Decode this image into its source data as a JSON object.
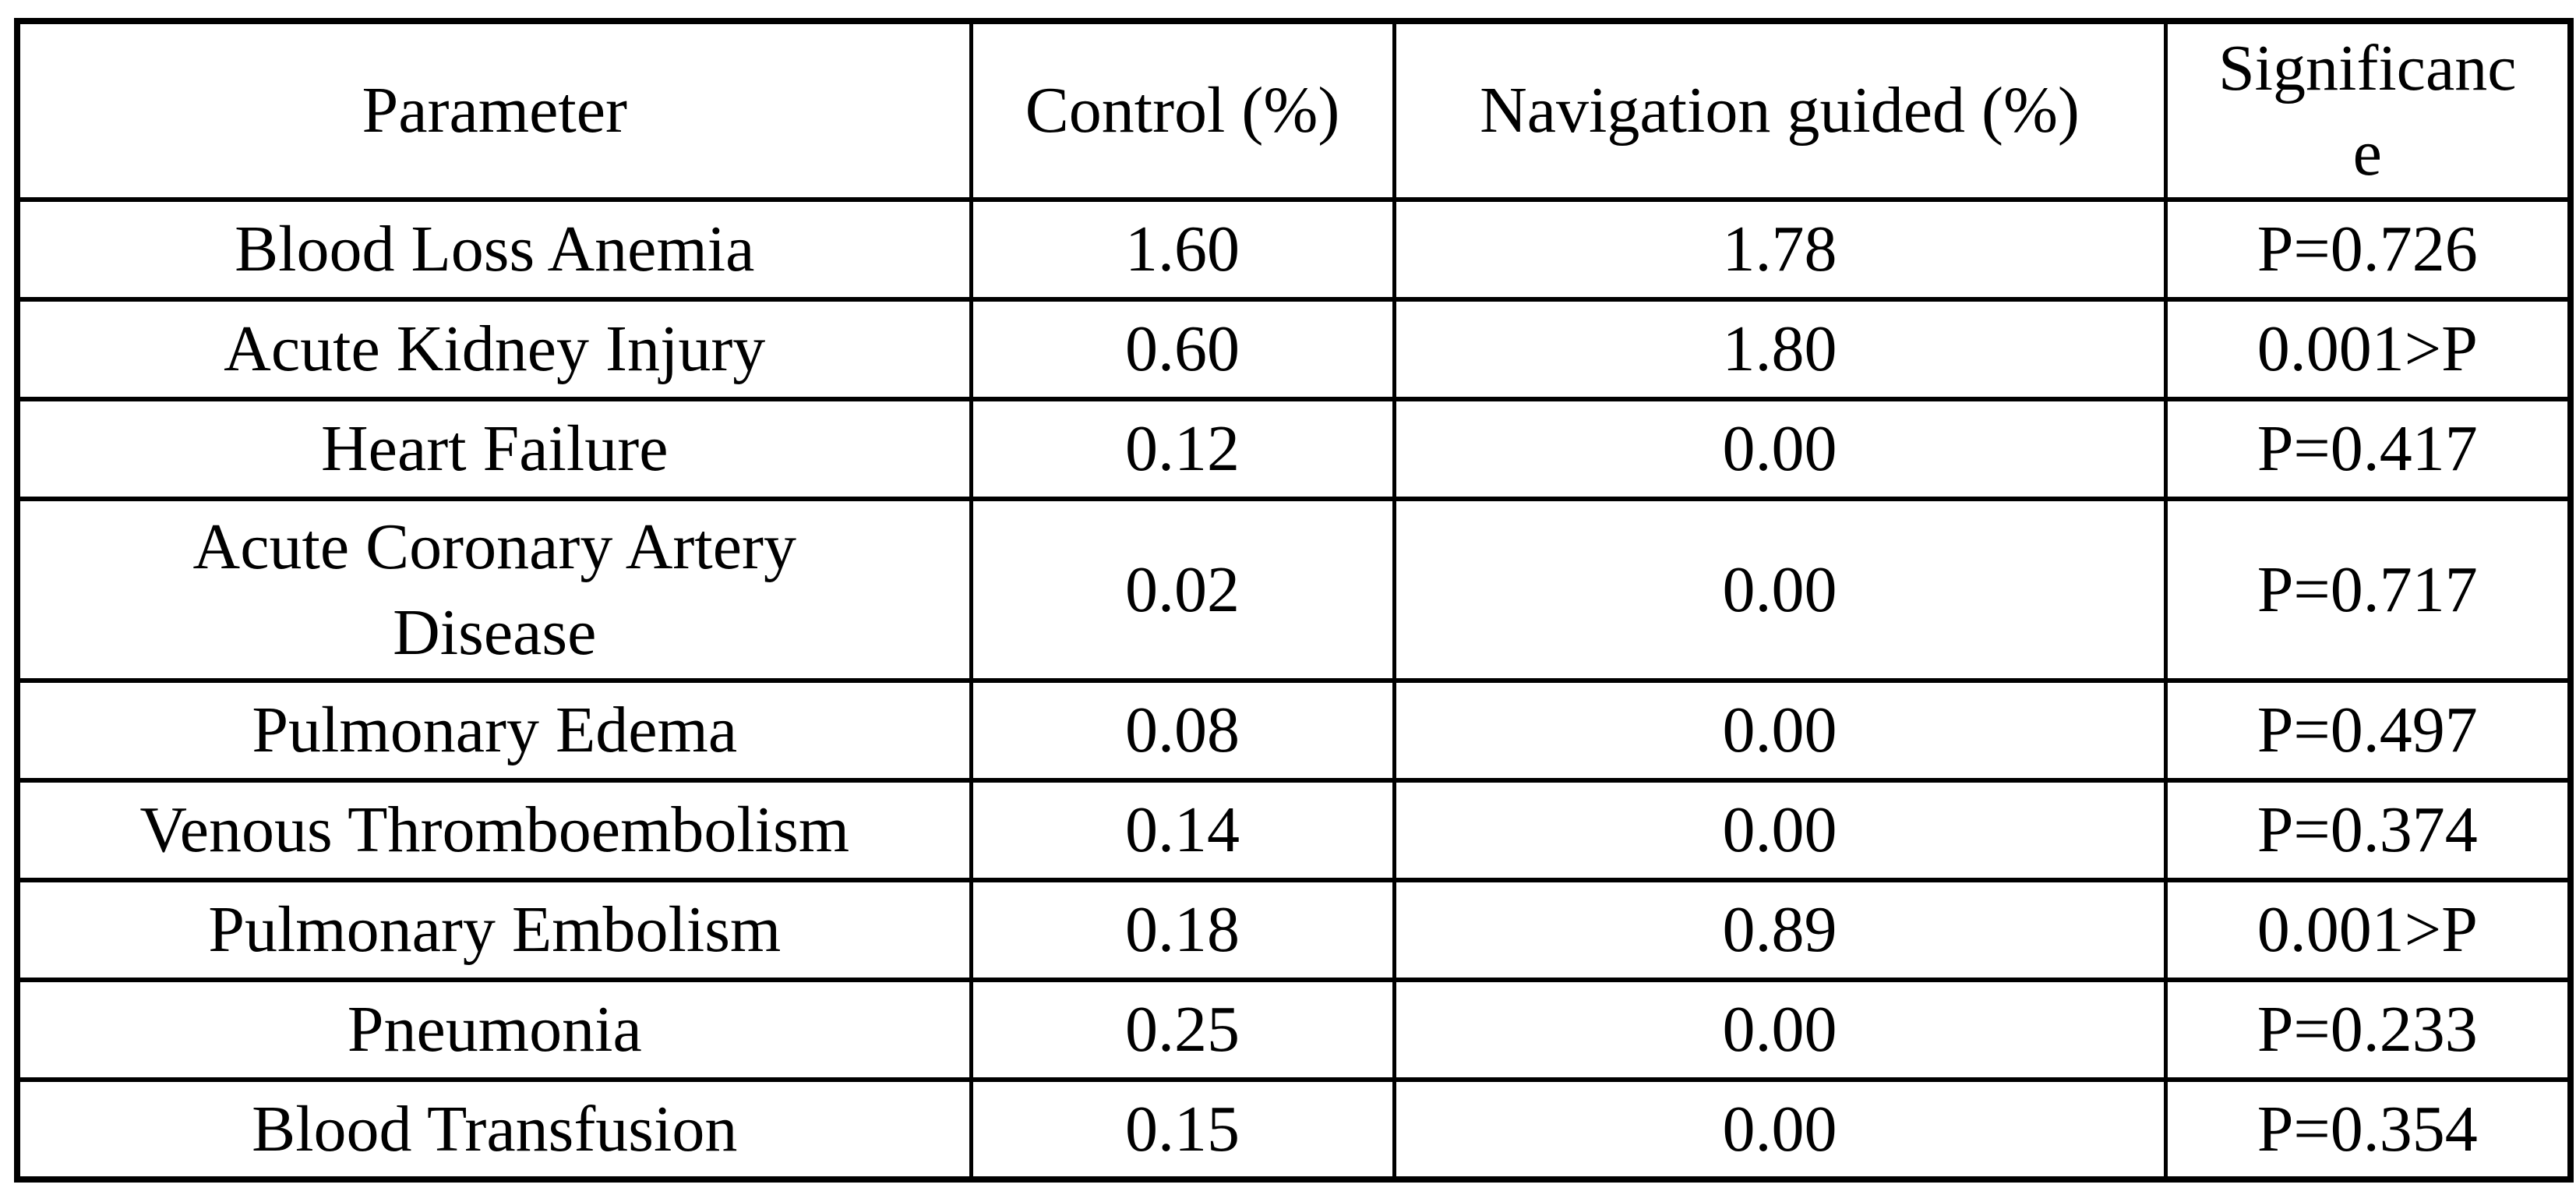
{
  "table": {
    "columns": [
      {
        "label": "Parameter"
      },
      {
        "label": "Control (%)"
      },
      {
        "label": "Navigation guided (%)"
      },
      {
        "label": "Significance"
      }
    ],
    "rows": [
      {
        "parameter": "Blood Loss Anemia",
        "control": "1.60",
        "navigation": "1.78",
        "significance": "P=0.726"
      },
      {
        "parameter": "Acute Kidney Injury",
        "control": "0.60",
        "navigation": "1.80",
        "significance": "0.001>P"
      },
      {
        "parameter": "Heart Failure",
        "control": "0.12",
        "navigation": "0.00",
        "significance": "P=0.417"
      },
      {
        "parameter": "Acute Coronary Artery Disease",
        "control": "0.02",
        "navigation": "0.00",
        "significance": "P=0.717"
      },
      {
        "parameter": "Pulmonary Edema",
        "control": "0.08",
        "navigation": "0.00",
        "significance": "P=0.497"
      },
      {
        "parameter": "Venous Thromboembolism",
        "control": "0.14",
        "navigation": "0.00",
        "significance": "P=0.374"
      },
      {
        "parameter": "Pulmonary Embolism",
        "control": "0.18",
        "navigation": "0.89",
        "significance": "0.001>P"
      },
      {
        "parameter": "Pneumonia",
        "control": "0.25",
        "navigation": "0.00",
        "significance": "P=0.233"
      },
      {
        "parameter": "Blood Transfusion",
        "control": "0.15",
        "navigation": "0.00",
        "significance": "P=0.354"
      }
    ]
  },
  "colors": {
    "background": "#ffffff",
    "border": "#000000",
    "text": "#000000"
  }
}
